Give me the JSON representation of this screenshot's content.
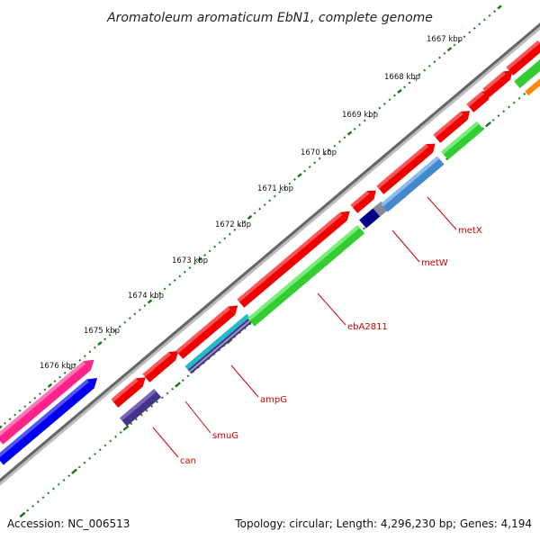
{
  "title": "Aromatoleum aromaticum EbN1, complete genome",
  "footer": {
    "accession": "Accession: NC_006513",
    "summary": "Topology: circular; Length: 4,296,230 bp; Genes: 4,194"
  },
  "ticks": [
    "1667 kbp",
    "1668 kbp",
    "1669 kbp",
    "1670 kbp",
    "1671 kbp",
    "1672 kbp",
    "1673 kbp",
    "1674 kbp",
    "1675 kbp",
    "1676 kbp"
  ],
  "gene_labels": [
    "metX",
    "metW",
    "ebA2811",
    "ampG",
    "smuG",
    "can"
  ],
  "colors": {
    "backbone": "#777777",
    "tick_green": "#1a7a1a",
    "forward_gene": "#ee0000",
    "label_red": "#cc0000",
    "ebA2811": "#33cc33",
    "ampG": "#22bbcc",
    "metW": "#000088",
    "metX_strip": "#4488cc",
    "can": "#443388",
    "pink_feature": "#ff2288",
    "blue_feature": "#0000ee",
    "orange_feature": "#ff8800"
  }
}
